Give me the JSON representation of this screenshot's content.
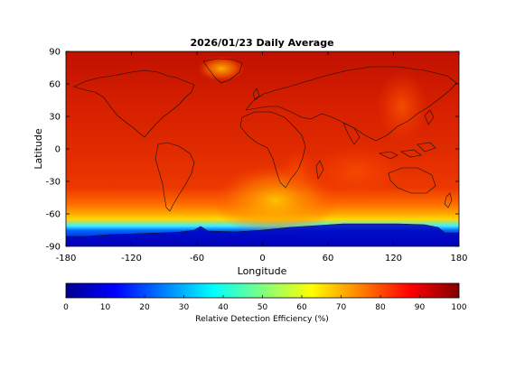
{
  "title": "2026/01/23 Daily Average",
  "map": {
    "xlabel": "Longitude",
    "ylabel": "Latitude",
    "xlim": [
      -180,
      180
    ],
    "ylim": [
      -90,
      90
    ],
    "xticks": [
      -180,
      -120,
      -60,
      0,
      60,
      120,
      180
    ],
    "yticks": [
      -90,
      -60,
      -30,
      0,
      30,
      60,
      90
    ],
    "projection": "equirectangular",
    "coastlines": true,
    "field": "Relative Detection Efficiency",
    "zones": [
      {
        "lat_from": 90,
        "lat_to": 30,
        "value": 92
      },
      {
        "lat_from": 30,
        "lat_to": -40,
        "value": 90
      },
      {
        "lat_from": -40,
        "lat_to": -55,
        "value": 80
      },
      {
        "lat_from": -55,
        "lat_to": -63,
        "value": 68
      },
      {
        "lat_from": -63,
        "lat_to": -70,
        "value": 48
      },
      {
        "lat_from": -70,
        "lat_to": -75,
        "value": 30
      },
      {
        "lat_from": -75,
        "lat_to": -90,
        "value": 5
      }
    ]
  },
  "colorbar": {
    "label": "Relative Detection Efficiency (%)",
    "min": 0,
    "max": 100,
    "ticks": [
      0,
      10,
      20,
      30,
      40,
      50,
      60,
      70,
      80,
      90,
      100
    ],
    "colormap": "jet"
  },
  "colors": {
    "deep_red": "#c21400",
    "red": "#e42a00",
    "orange_red": "#ff4a00",
    "orange": "#ff9a00",
    "yellow": "#ffd400",
    "cyan": "#22e8ff",
    "blue": "#0044ff",
    "deep_blue": "#0000b0",
    "coast": "#111111"
  }
}
